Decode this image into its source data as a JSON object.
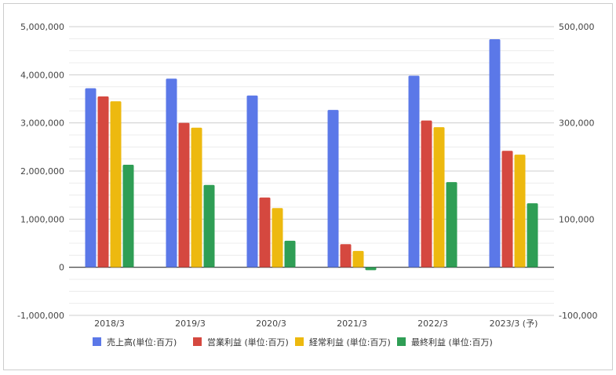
{
  "chart_data": {
    "type": "bar",
    "categories": [
      "2018/3",
      "2019/3",
      "2020/3",
      "2021/3",
      "2022/3",
      "2023/3 (予)"
    ],
    "series": [
      {
        "name": "売上高(単位:百万)",
        "color": "#5b78e8",
        "values": [
          3720000,
          3920000,
          3570000,
          3270000,
          3980000,
          4740000
        ]
      },
      {
        "name": "営業利益 (単位:百万)",
        "color": "#d5483f",
        "values": [
          355000,
          300000,
          145000,
          48000,
          305000,
          242000
        ]
      },
      {
        "name": "経常利益 (単位:百万)",
        "color": "#edb90f",
        "values": [
          345000,
          290000,
          123000,
          34000,
          291000,
          234000
        ]
      },
      {
        "name": "最終利益 (単位:百万)",
        "color": "#2f9e55",
        "values": [
          213000,
          171000,
          55000,
          -6000,
          177000,
          133000
        ]
      }
    ],
    "left_axis": {
      "min": -1000000,
      "max": 5000000,
      "ticks": [
        "-1,000,000",
        "0",
        "1,000,000",
        "2,000,000",
        "3,000,000",
        "4,000,000",
        "5,000,000"
      ]
    },
    "right_axis": {
      "min": -100000,
      "max": 500000,
      "ticks": [
        "-100,000",
        "100,000",
        "300,000",
        "500,000"
      ]
    },
    "series_axis": [
      "left",
      "right",
      "right",
      "right"
    ],
    "legend_position": "bottom",
    "grid": true
  }
}
